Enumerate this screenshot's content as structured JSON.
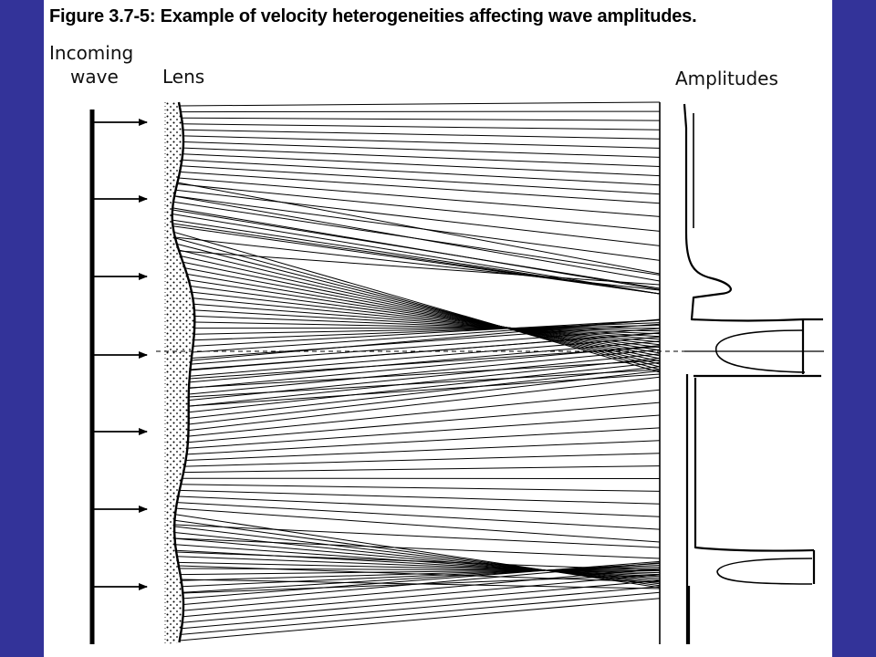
{
  "figure": {
    "title": "Figure 3.7-5: Example of velocity heterogeneities affecting wave amplitudes."
  },
  "labels": {
    "incoming": "Incoming",
    "wave": "wave",
    "lens": "Lens",
    "amplitudes": "Amplitudes"
  },
  "colors": {
    "frame": "#333399",
    "panel": "#ffffff",
    "ink": "#000000"
  }
}
